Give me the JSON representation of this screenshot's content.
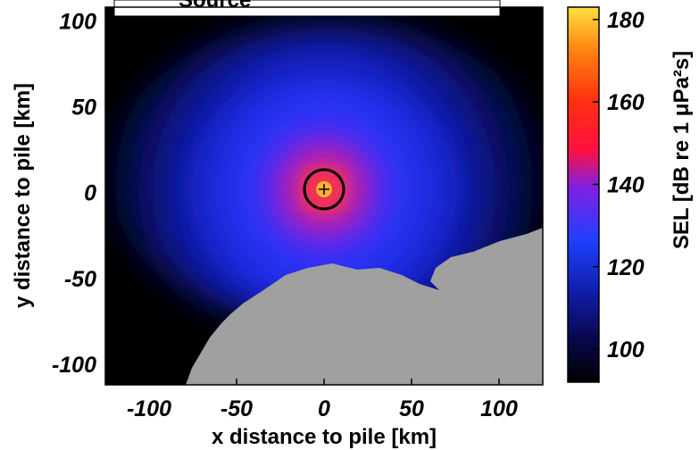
{
  "chart_data": {
    "type": "heatmap",
    "title": "",
    "xlabel": "x distance to pile [km]",
    "ylabel": "y distance to pile [km]",
    "xlim": [
      -125,
      125
    ],
    "ylim": [
      -112,
      108
    ],
    "x_ticks": [
      -100,
      -50,
      0,
      50,
      100
    ],
    "y_ticks": [
      100,
      50,
      0,
      -50,
      -100
    ],
    "legend_box_text": "Source",
    "source_point": {
      "x": 0,
      "y": 0
    },
    "source_circle_radius_km": 10,
    "colorbar": {
      "label": "SEL [dB re 1 μPa²s]",
      "range": [
        92,
        183
      ],
      "ticks": [
        180,
        160,
        140,
        120,
        100
      ]
    },
    "land_color": "#a0a0a0",
    "ocean_no_data_color": "#000000",
    "grid": false
  }
}
